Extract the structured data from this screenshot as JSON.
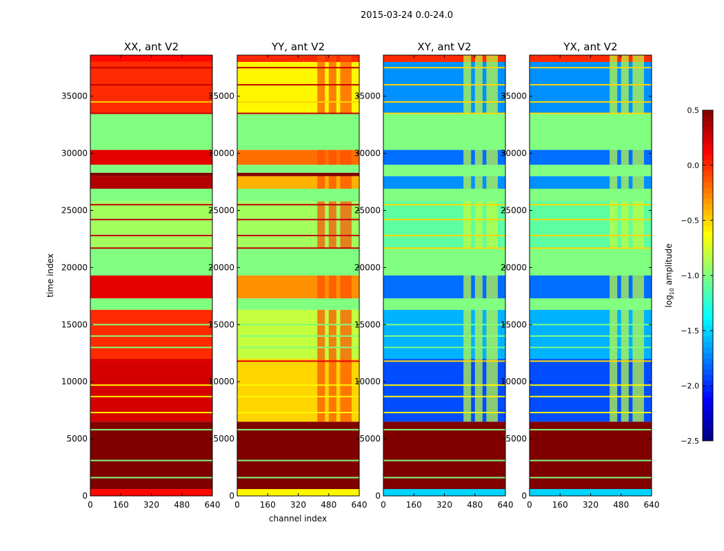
{
  "chart_data": {
    "type": "heatmap",
    "title": "2015-03-24 0.0-24.0",
    "xlabel": "channel index",
    "ylabel": "time index",
    "xlim": [
      0,
      640
    ],
    "ylim": [
      0,
      38600
    ],
    "xticks": [
      "0",
      "160",
      "320",
      "480",
      "640"
    ],
    "yticks": [
      "0",
      "5000",
      "10000",
      "15000",
      "20000",
      "25000",
      "30000",
      "35000"
    ],
    "colorbar": {
      "label_main": "log",
      "label_sub": "10",
      "label_rest": " amplitude",
      "range": [
        -2.5,
        0.5
      ],
      "ticks": [
        "0.5",
        "0.0",
        "−0.5",
        "−1.0",
        "−1.5",
        "−2.0",
        "−2.5"
      ],
      "colormap": "jet"
    },
    "panels": [
      {
        "title": "XX, ant V2",
        "hot_channels": null,
        "bands": [
          [
            0,
            600,
            0.1
          ],
          [
            600,
            6500,
            0.5
          ],
          [
            6500,
            12000,
            0.25
          ],
          [
            12000,
            16300,
            0.0
          ],
          [
            16300,
            17300,
            -1.0
          ],
          [
            17300,
            19300,
            0.2
          ],
          [
            19300,
            21700,
            -1.0
          ],
          [
            21700,
            25800,
            -0.9
          ],
          [
            25800,
            26900,
            -1.0
          ],
          [
            26900,
            28000,
            0.35
          ],
          [
            28000,
            28300,
            0.5
          ],
          [
            28300,
            29000,
            -1.0
          ],
          [
            29000,
            30300,
            0.2
          ],
          [
            30300,
            33500,
            -1.0
          ],
          [
            33500,
            38000,
            0.0
          ],
          [
            38000,
            38600,
            0.1
          ]
        ]
      },
      {
        "title": "YY, ant V2",
        "hot_channels": [
          420,
          600,
          -0.1
        ],
        "bands": [
          [
            0,
            600,
            -0.6
          ],
          [
            600,
            6500,
            0.5
          ],
          [
            6500,
            12000,
            -0.5
          ],
          [
            12000,
            16300,
            -0.8
          ],
          [
            16300,
            17300,
            -1.0
          ],
          [
            17300,
            19300,
            -0.3
          ],
          [
            19300,
            21700,
            -1.0
          ],
          [
            21700,
            25800,
            -0.9
          ],
          [
            25800,
            26900,
            -1.0
          ],
          [
            26900,
            28000,
            -0.4
          ],
          [
            28000,
            28300,
            0.5
          ],
          [
            28300,
            29000,
            -1.0
          ],
          [
            29000,
            30300,
            -0.2
          ],
          [
            30300,
            33500,
            -1.0
          ],
          [
            33500,
            38000,
            -0.6
          ],
          [
            38000,
            38600,
            0.0
          ]
        ]
      },
      {
        "title": "XY, ant V2",
        "hot_channels": [
          420,
          600,
          -0.8
        ],
        "bands": [
          [
            0,
            600,
            -1.5
          ],
          [
            600,
            6500,
            0.5
          ],
          [
            6500,
            12000,
            -1.9
          ],
          [
            12000,
            16300,
            -1.6
          ],
          [
            16300,
            17300,
            -1.0
          ],
          [
            17300,
            19300,
            -1.8
          ],
          [
            19300,
            21700,
            -1.0
          ],
          [
            21700,
            25800,
            -1.1
          ],
          [
            25800,
            26900,
            -1.0
          ],
          [
            26900,
            28000,
            -1.7
          ],
          [
            28000,
            28300,
            -1.0
          ],
          [
            28300,
            29000,
            -1.0
          ],
          [
            29000,
            30300,
            -1.8
          ],
          [
            30300,
            33500,
            -1.0
          ],
          [
            33500,
            38000,
            -1.7
          ],
          [
            38000,
            38600,
            0.0
          ]
        ]
      },
      {
        "title": "YX, ant V2",
        "hot_channels": [
          420,
          600,
          -0.8
        ],
        "bands": [
          [
            0,
            600,
            -1.5
          ],
          [
            600,
            6500,
            0.5
          ],
          [
            6500,
            12000,
            -1.9
          ],
          [
            12000,
            16300,
            -1.6
          ],
          [
            16300,
            17300,
            -1.0
          ],
          [
            17300,
            19300,
            -1.8
          ],
          [
            19300,
            21700,
            -1.0
          ],
          [
            21700,
            25800,
            -1.1
          ],
          [
            25800,
            26900,
            -1.0
          ],
          [
            26900,
            28000,
            -1.7
          ],
          [
            28000,
            28300,
            -1.0
          ],
          [
            28300,
            29000,
            -1.0
          ],
          [
            29000,
            30300,
            -1.8
          ],
          [
            30300,
            33500,
            -1.0
          ],
          [
            33500,
            38000,
            -1.7
          ],
          [
            38000,
            38600,
            0.0
          ]
        ]
      }
    ],
    "lines": [
      [
        1600,
        -1.0
      ],
      [
        3100,
        -1.0
      ],
      [
        5800,
        -1.0
      ],
      [
        7300,
        -0.6
      ],
      [
        8700,
        -0.6
      ],
      [
        9700,
        -0.6
      ],
      [
        11800,
        0.2
      ],
      [
        13000,
        -1.0
      ],
      [
        14000,
        -1.0
      ],
      [
        15000,
        -1.0
      ],
      [
        21700,
        0.3
      ],
      [
        22800,
        0.3
      ],
      [
        24200,
        0.3
      ],
      [
        25500,
        0.3
      ],
      [
        33500,
        0.3
      ],
      [
        34500,
        -0.5
      ],
      [
        36000,
        0.3
      ],
      [
        37500,
        0.3
      ]
    ]
  }
}
